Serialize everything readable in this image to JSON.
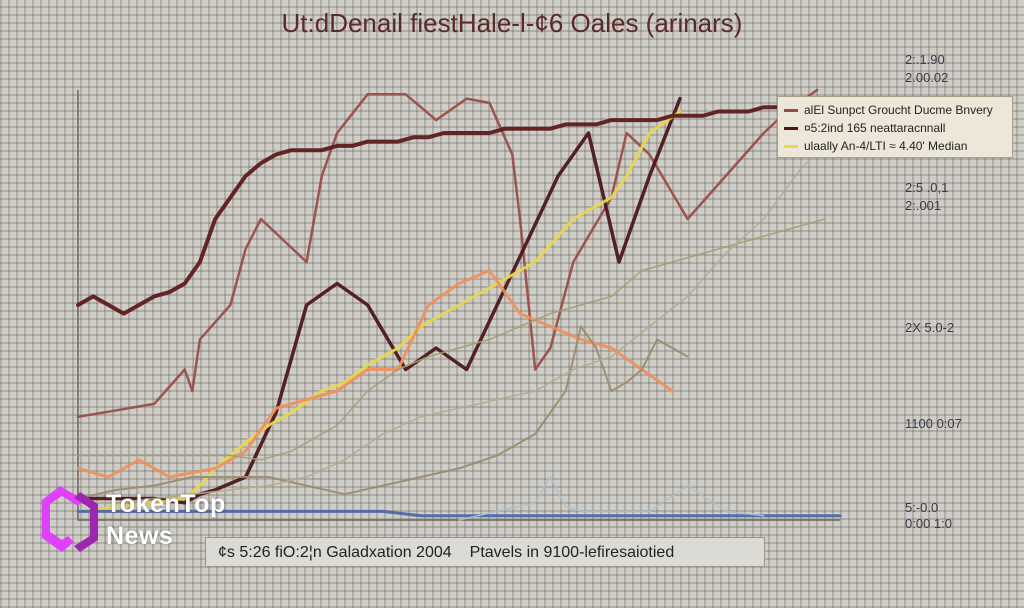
{
  "title": "Ut:dDenail fiestHale-l-¢6 Oales (arinars)",
  "caption": [
    "¢s 5:26 fiO:2¦n Galadxation 2004",
    "Ptavels in 9100-lefiresaiotied"
  ],
  "right_labels": [
    "2:.1.90",
    "2.00.02",
    "2:5 .0,1",
    "2:.001",
    "2X 5.0-2",
    "1100 0:07",
    "5:-0.0",
    "0:00 1:0"
  ],
  "legend": [
    {
      "label": "alEl Sunpct Groucht Ducme Bnvery",
      "color": "#9a4a44"
    },
    {
      "label": "¤5:2ind 165 neattaracnnall",
      "color": "#4a1418"
    },
    {
      "label": "ulaally An-4/LTI ≈ 4.40' Median",
      "color": "#e8d84a"
    }
  ],
  "logo": {
    "line1": "TokenTop",
    "line2": "News",
    "colors": [
      "#e040fb",
      "#9c27b0"
    ]
  },
  "chart_data": {
    "type": "line",
    "title": "Ut:dDenail fiestHale-l-¢6 Oales (arinars)",
    "xlim": [
      0,
      100
    ],
    "ylim": [
      0,
      100
    ],
    "grid": true,
    "legend_position": "top-right",
    "series": [
      {
        "name": "alEl Sunpct Groucht Ducme Bnvery",
        "color": "#9a4a44",
        "x": [
          0,
          10,
          14,
          15,
          16,
          20,
          22,
          24,
          30,
          32,
          34,
          38,
          43,
          47,
          51,
          54,
          57,
          58,
          60,
          62,
          65,
          70,
          72,
          75,
          80,
          85,
          90,
          93,
          97
        ],
        "y": [
          24,
          27,
          35,
          30,
          42,
          50,
          63,
          70,
          60,
          80,
          90,
          99,
          99,
          93,
          98,
          97,
          85,
          70,
          35,
          40,
          60,
          75,
          90,
          85,
          70,
          80,
          90,
          95,
          100
        ]
      },
      {
        "name": "¤5:2ind 165 neattaracnnall",
        "color": "#4a1418",
        "x": [
          0,
          10,
          14,
          16,
          18,
          22,
          26,
          30,
          34,
          38,
          43,
          47,
          51,
          55,
          59,
          63,
          67,
          71,
          75,
          79
        ],
        "y": [
          5,
          5,
          4,
          6,
          7,
          10,
          25,
          50,
          55,
          50,
          35,
          40,
          35,
          50,
          65,
          80,
          90,
          60,
          80,
          98
        ]
      },
      {
        "name": "ulaally An-4/LTI ≈ 4.40' Median",
        "color": "#e8d84a",
        "x": [
          0,
          10,
          14,
          16,
          18,
          22,
          25,
          28,
          32,
          35,
          38,
          42,
          45,
          50,
          55,
          60,
          65,
          70,
          72,
          75,
          79
        ],
        "y": [
          2,
          4,
          5,
          8,
          12,
          18,
          22,
          25,
          30,
          32,
          36,
          40,
          45,
          50,
          55,
          60,
          70,
          75,
          80,
          90,
          95
        ]
      },
      {
        "color": "#f0905a",
        "x": [
          0,
          4,
          8,
          12,
          18,
          22,
          26,
          30,
          34,
          38,
          42,
          46,
          50,
          54,
          58,
          62,
          66,
          70,
          74,
          78
        ],
        "y": [
          12,
          10,
          14,
          10,
          12,
          16,
          26,
          28,
          30,
          35,
          35,
          50,
          55,
          58,
          48,
          45,
          42,
          40,
          35,
          30
        ]
      },
      {
        "color": "#5a1818",
        "x": [
          0,
          2,
          4,
          6,
          8,
          10,
          12,
          14,
          16,
          18,
          20,
          22,
          24,
          26,
          28,
          30,
          32,
          34,
          36,
          38,
          40,
          42,
          44,
          46,
          48,
          50,
          52,
          54,
          56,
          58,
          60,
          62,
          64,
          66,
          68,
          70,
          72,
          74,
          76,
          78,
          80,
          82,
          84,
          86,
          88,
          90,
          92,
          94,
          96,
          98,
          100
        ],
        "y": [
          50,
          52,
          50,
          48,
          50,
          52,
          53,
          55,
          60,
          70,
          75,
          80,
          83,
          85,
          86,
          86,
          86,
          87,
          87,
          88,
          88,
          88,
          89,
          89,
          90,
          90,
          90,
          90,
          91,
          91,
          91,
          91,
          92,
          92,
          92,
          93,
          93,
          93,
          93,
          94,
          94,
          94,
          95,
          95,
          95,
          96,
          96,
          96,
          97,
          97,
          98
        ]
      },
      {
        "color": "#a0a070",
        "x": [
          0,
          4,
          8,
          12,
          16,
          20,
          24,
          28,
          30,
          34,
          38,
          42,
          46,
          50,
          54,
          58,
          62,
          66,
          70,
          74,
          78,
          82,
          86,
          90,
          94,
          98
        ],
        "y": [
          15,
          15,
          15,
          15,
          15,
          15,
          14,
          16,
          18,
          22,
          30,
          35,
          38,
          40,
          42,
          45,
          48,
          50,
          52,
          58,
          60,
          62,
          64,
          66,
          68,
          70
        ]
      },
      {
        "color": "#9b8a6e",
        "x": [
          0,
          5,
          10,
          15,
          20,
          25,
          30,
          35,
          40,
          45,
          50,
          55,
          60,
          62,
          64,
          66,
          68,
          70,
          72,
          74,
          76,
          78,
          80
        ],
        "y": [
          5,
          7,
          8,
          10,
          10,
          10,
          8,
          6,
          8,
          10,
          12,
          15,
          20,
          25,
          30,
          45,
          40,
          30,
          32,
          35,
          42,
          40,
          38
        ]
      },
      {
        "color": "#b4aa8a",
        "x": [
          0,
          5,
          10,
          15,
          20,
          25,
          30,
          35,
          40,
          45,
          50,
          55,
          60,
          65,
          70,
          75,
          80,
          85,
          90,
          95,
          100
        ],
        "y": [
          4,
          4,
          5,
          6,
          7,
          8,
          10,
          14,
          20,
          24,
          26,
          28,
          30,
          35,
          38,
          45,
          52,
          62,
          70,
          82,
          90
        ]
      },
      {
        "color": "#4a66a8",
        "x": [
          0,
          5,
          10,
          15,
          20,
          25,
          30,
          35,
          40,
          45,
          50,
          55,
          60,
          65,
          70,
          75,
          80,
          85,
          90,
          95,
          100
        ],
        "y": [
          2,
          2,
          2,
          2,
          2,
          2,
          2,
          2,
          2,
          1,
          1,
          1,
          1,
          1,
          1,
          1,
          1,
          1,
          1,
          1,
          1
        ]
      },
      {
        "color": "#a8c0d0",
        "x": [
          50,
          55,
          60,
          62,
          64,
          66,
          70,
          75,
          80,
          85,
          90
        ],
        "y": [
          0,
          2,
          4,
          10,
          3,
          2,
          2,
          2,
          8,
          2,
          1
        ]
      }
    ]
  }
}
